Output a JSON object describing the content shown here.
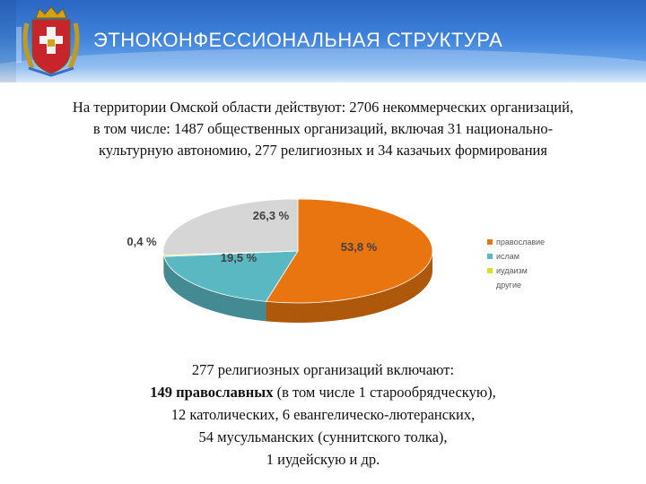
{
  "header": {
    "title": "ЭТНОКОНФЕССИОНАЛЬНАЯ СТРУКТУРА"
  },
  "intro": {
    "lines": [
      "На территории Омской области действуют: 2706 некоммерческих организаций,",
      "в том числе: 1487 общественных организаций, включая 31 национально-",
      "культурную автономию, 277 религиозных и 34 казачьих формирования"
    ]
  },
  "chart_data": {
    "type": "pie",
    "title": "",
    "slices": [
      {
        "name": "православие",
        "value": 53.8,
        "label": "53,8 %",
        "color": "#e8750f"
      },
      {
        "name": "ислам",
        "value": 19.5,
        "label": "19,5 %",
        "color": "#5ab8c2"
      },
      {
        "name": "иудаизм",
        "value": 0.4,
        "label": "0,4 %",
        "color": "#d9e21a"
      },
      {
        "name": "другие",
        "value": 26.3,
        "label": "26,3 %",
        "color": "#d6d6d6"
      }
    ],
    "legend_position": "right",
    "style": "3d"
  },
  "religious": {
    "line1": "277 религиозных организаций включают:",
    "line2_bold": "149 православных",
    "line2_rest": " (в том числе 1 старообрядческую),",
    "line3": "12 католических, 6 евангелическо-лютеранских,",
    "line4": "54 мусульманских (суннитского толка),",
    "line5": "1 иудейскую и др."
  }
}
